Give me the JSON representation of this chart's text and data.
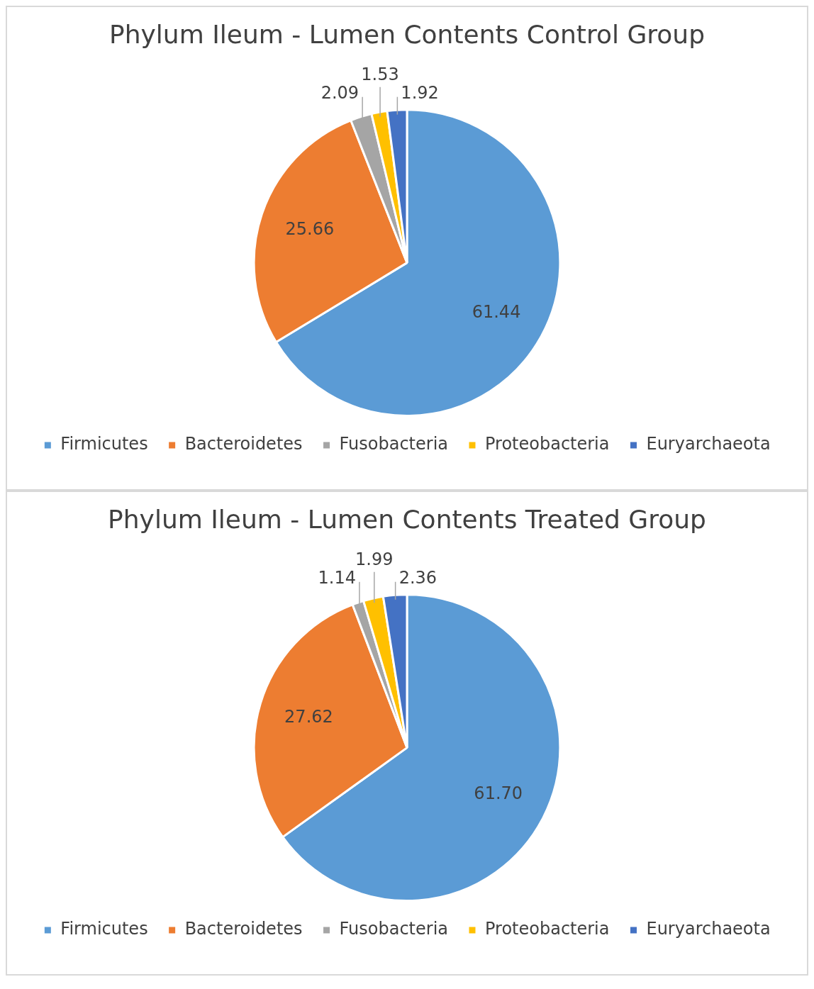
{
  "chart_data": [
    {
      "type": "pie",
      "title": "Phylum Ileum - Lumen Contents Control Group",
      "categories": [
        "Firmicutes",
        "Bacteroidetes",
        "Fusobacteria",
        "Proteobacteria",
        "Euryarchaeota"
      ],
      "values": [
        61.44,
        25.66,
        2.09,
        1.53,
        1.92
      ],
      "value_labels": [
        "61.44",
        "25.66",
        "2.09",
        "1.53",
        "1.92"
      ],
      "colors": [
        "#5b9bd5",
        "#ed7d31",
        "#a5a5a5",
        "#ffc000",
        "#4472c4"
      ],
      "data_labels": true,
      "legend": "bottom"
    },
    {
      "type": "pie",
      "title": "Phylum Ileum - Lumen Contents Treated Group",
      "categories": [
        "Firmicutes",
        "Bacteroidetes",
        "Fusobacteria",
        "Proteobacteria",
        "Euryarchaeota"
      ],
      "values": [
        61.7,
        27.62,
        1.14,
        1.99,
        2.36
      ],
      "value_labels": [
        "61.70",
        "27.62",
        "1.14",
        "1.99",
        "2.36"
      ],
      "colors": [
        "#5b9bd5",
        "#ed7d31",
        "#a5a5a5",
        "#ffc000",
        "#4472c4"
      ],
      "data_labels": true,
      "legend": "bottom"
    }
  ]
}
